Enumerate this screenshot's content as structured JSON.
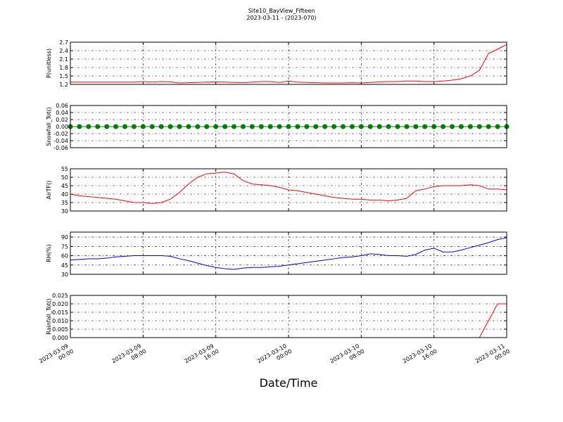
{
  "title": "Site10_BayView_Fifteen",
  "subtitle": "2023-03-11 - (2023-070)",
  "xlabel": "Date/Time",
  "chart_data": [
    {
      "type": "line",
      "ylabel": "P(unitless)",
      "color": "#ff0000",
      "grid": true,
      "xlim": [
        "2023-03-09 00:00",
        "2023-03-11 00:00"
      ],
      "xticks": [
        "2023-03-09 00:00",
        "2023-03-09 08:00",
        "2023-03-09 16:00",
        "2023-03-10 00:00",
        "2023-03-10 08:00",
        "2023-03-10 16:00",
        "2023-03-11 00:00"
      ],
      "ylim": [
        1.2,
        2.7
      ],
      "yticks": [
        1.2,
        1.5,
        1.8,
        2.1,
        2.4,
        2.7
      ],
      "x": [
        "2023-03-09 00:00",
        "2023-03-09 01:00",
        "2023-03-09 02:00",
        "2023-03-09 03:00",
        "2023-03-09 04:00",
        "2023-03-09 05:00",
        "2023-03-09 06:00",
        "2023-03-09 07:00",
        "2023-03-09 08:00",
        "2023-03-09 09:00",
        "2023-03-09 10:00",
        "2023-03-09 11:00",
        "2023-03-09 12:00",
        "2023-03-09 13:00",
        "2023-03-09 14:00",
        "2023-03-09 15:00",
        "2023-03-09 16:00",
        "2023-03-09 17:00",
        "2023-03-09 18:00",
        "2023-03-09 19:00",
        "2023-03-09 20:00",
        "2023-03-09 21:00",
        "2023-03-09 22:00",
        "2023-03-09 23:00",
        "2023-03-10 00:00",
        "2023-03-10 01:00",
        "2023-03-10 02:00",
        "2023-03-10 03:00",
        "2023-03-10 04:00",
        "2023-03-10 05:00",
        "2023-03-10 06:00",
        "2023-03-10 07:00",
        "2023-03-10 08:00",
        "2023-03-10 09:00",
        "2023-03-10 10:00",
        "2023-03-10 11:00",
        "2023-03-10 12:00",
        "2023-03-10 13:00",
        "2023-03-10 14:00",
        "2023-03-10 15:00",
        "2023-03-10 16:00",
        "2023-03-10 17:00",
        "2023-03-10 18:00",
        "2023-03-10 19:00",
        "2023-03-10 20:00",
        "2023-03-10 21:00",
        "2023-03-10 22:00",
        "2023-03-10 23:00",
        "2023-03-11 00:00"
      ],
      "values": [
        1.28,
        1.28,
        1.28,
        1.28,
        1.28,
        1.28,
        1.28,
        1.28,
        1.3,
        1.28,
        1.3,
        1.29,
        1.25,
        1.26,
        1.27,
        1.28,
        1.29,
        1.28,
        1.27,
        1.26,
        1.28,
        1.3,
        1.3,
        1.27,
        1.32,
        1.28,
        1.27,
        1.26,
        1.25,
        1.25,
        1.25,
        1.26,
        1.25,
        1.27,
        1.29,
        1.3,
        1.3,
        1.32,
        1.32,
        1.3,
        1.3,
        1.32,
        1.35,
        1.4,
        1.5,
        1.7,
        2.3,
        2.45,
        2.62
      ]
    },
    {
      "type": "line",
      "ylabel": "Snowfall_Tot()",
      "color": "#008000",
      "marker": true,
      "grid": true,
      "xlim": [
        "2023-03-09 00:00",
        "2023-03-11 00:00"
      ],
      "xticks": [
        "2023-03-09 00:00",
        "2023-03-09 08:00",
        "2023-03-09 16:00",
        "2023-03-10 00:00",
        "2023-03-10 08:00",
        "2023-03-10 16:00",
        "2023-03-11 00:00"
      ],
      "ylim": [
        -0.06,
        0.06
      ],
      "yticks": [
        -0.06,
        -0.04,
        -0.02,
        {
          "value": 0,
          "label": "0.00"
        },
        0.02,
        0.04,
        0.06
      ],
      "x": [
        "2023-03-09 00:00",
        "2023-03-09 01:00",
        "2023-03-09 02:00",
        "2023-03-09 03:00",
        "2023-03-09 04:00",
        "2023-03-09 05:00",
        "2023-03-09 06:00",
        "2023-03-09 07:00",
        "2023-03-09 08:00",
        "2023-03-09 09:00",
        "2023-03-09 10:00",
        "2023-03-09 11:00",
        "2023-03-09 12:00",
        "2023-03-09 13:00",
        "2023-03-09 14:00",
        "2023-03-09 15:00",
        "2023-03-09 16:00",
        "2023-03-09 17:00",
        "2023-03-09 18:00",
        "2023-03-09 19:00",
        "2023-03-09 20:00",
        "2023-03-09 21:00",
        "2023-03-09 22:00",
        "2023-03-09 23:00",
        "2023-03-10 00:00",
        "2023-03-10 01:00",
        "2023-03-10 02:00",
        "2023-03-10 03:00",
        "2023-03-10 04:00",
        "2023-03-10 05:00",
        "2023-03-10 06:00",
        "2023-03-10 07:00",
        "2023-03-10 08:00",
        "2023-03-10 09:00",
        "2023-03-10 10:00",
        "2023-03-10 11:00",
        "2023-03-10 12:00",
        "2023-03-10 13:00",
        "2023-03-10 14:00",
        "2023-03-10 15:00",
        "2023-03-10 16:00",
        "2023-03-10 17:00",
        "2023-03-10 18:00",
        "2023-03-10 19:00",
        "2023-03-10 20:00",
        "2023-03-10 21:00",
        "2023-03-10 22:00",
        "2023-03-10 23:00",
        "2023-03-11 00:00"
      ],
      "values": [
        0,
        0,
        0,
        0,
        0,
        0,
        0,
        0,
        0,
        0,
        0,
        0,
        0,
        0,
        0,
        0,
        0,
        0,
        0,
        0,
        0,
        0,
        0,
        0,
        0,
        0,
        0,
        0,
        0,
        0,
        0,
        0,
        0,
        0,
        0,
        0,
        0,
        0,
        0,
        0,
        0,
        0,
        0,
        0,
        0,
        0,
        0,
        0,
        0
      ]
    },
    {
      "type": "line",
      "ylabel": "AirTF()",
      "color": "#ff0000",
      "grid": true,
      "xlim": [
        "2023-03-09 00:00",
        "2023-03-11 00:00"
      ],
      "xticks": [
        "2023-03-09 00:00",
        "2023-03-09 08:00",
        "2023-03-09 16:00",
        "2023-03-10 00:00",
        "2023-03-10 08:00",
        "2023-03-10 16:00",
        "2023-03-11 00:00"
      ],
      "ylim": [
        30,
        55
      ],
      "yticks": [
        30,
        35,
        40,
        45,
        50,
        55
      ],
      "x": [
        "2023-03-09 00:00",
        "2023-03-09 01:00",
        "2023-03-09 02:00",
        "2023-03-09 03:00",
        "2023-03-09 04:00",
        "2023-03-09 05:00",
        "2023-03-09 06:00",
        "2023-03-09 07:00",
        "2023-03-09 08:00",
        "2023-03-09 09:00",
        "2023-03-09 10:00",
        "2023-03-09 11:00",
        "2023-03-09 12:00",
        "2023-03-09 13:00",
        "2023-03-09 14:00",
        "2023-03-09 15:00",
        "2023-03-09 16:00",
        "2023-03-09 17:00",
        "2023-03-09 18:00",
        "2023-03-09 19:00",
        "2023-03-09 20:00",
        "2023-03-09 21:00",
        "2023-03-09 22:00",
        "2023-03-09 23:00",
        "2023-03-10 00:00",
        "2023-03-10 01:00",
        "2023-03-10 02:00",
        "2023-03-10 03:00",
        "2023-03-10 04:00",
        "2023-03-10 05:00",
        "2023-03-10 06:00",
        "2023-03-10 07:00",
        "2023-03-10 08:00",
        "2023-03-10 09:00",
        "2023-03-10 10:00",
        "2023-03-10 11:00",
        "2023-03-10 12:00",
        "2023-03-10 13:00",
        "2023-03-10 14:00",
        "2023-03-10 15:00",
        "2023-03-10 16:00",
        "2023-03-10 17:00",
        "2023-03-10 18:00",
        "2023-03-10 19:00",
        "2023-03-10 20:00",
        "2023-03-10 21:00",
        "2023-03-10 22:00",
        "2023-03-10 23:00",
        "2023-03-11 00:00"
      ],
      "values": [
        40,
        39,
        38.5,
        38,
        37.5,
        37,
        36,
        35,
        35,
        34.5,
        35,
        37,
        41,
        46,
        50,
        52,
        52.5,
        53,
        52,
        48,
        46,
        45.5,
        45,
        44,
        42.5,
        42,
        41,
        40,
        39,
        38,
        37.5,
        37,
        37,
        36.5,
        36.5,
        36,
        36.5,
        37.5,
        42,
        43,
        44.5,
        45,
        45,
        45,
        45.5,
        45,
        43,
        43,
        42.5
      ]
    },
    {
      "type": "line",
      "ylabel": "RH(%)",
      "color": "#0000ff",
      "grid": true,
      "xlim": [
        "2023-03-09 00:00",
        "2023-03-11 00:00"
      ],
      "xticks": [
        "2023-03-09 00:00",
        "2023-03-09 08:00",
        "2023-03-09 16:00",
        "2023-03-10 00:00",
        "2023-03-10 08:00",
        "2023-03-10 16:00",
        "2023-03-11 00:00"
      ],
      "ylim": [
        30,
        98
      ],
      "yticks": [
        30,
        45,
        60,
        75,
        90
      ],
      "x": [
        "2023-03-09 00:00",
        "2023-03-09 01:00",
        "2023-03-09 02:00",
        "2023-03-09 03:00",
        "2023-03-09 04:00",
        "2023-03-09 05:00",
        "2023-03-09 06:00",
        "2023-03-09 07:00",
        "2023-03-09 08:00",
        "2023-03-09 09:00",
        "2023-03-09 10:00",
        "2023-03-09 11:00",
        "2023-03-09 12:00",
        "2023-03-09 13:00",
        "2023-03-09 14:00",
        "2023-03-09 15:00",
        "2023-03-09 16:00",
        "2023-03-09 17:00",
        "2023-03-09 18:00",
        "2023-03-09 19:00",
        "2023-03-09 20:00",
        "2023-03-09 21:00",
        "2023-03-09 22:00",
        "2023-03-09 23:00",
        "2023-03-10 00:00",
        "2023-03-10 01:00",
        "2023-03-10 02:00",
        "2023-03-10 03:00",
        "2023-03-10 04:00",
        "2023-03-10 05:00",
        "2023-03-10 06:00",
        "2023-03-10 07:00",
        "2023-03-10 08:00",
        "2023-03-10 09:00",
        "2023-03-10 10:00",
        "2023-03-10 11:00",
        "2023-03-10 12:00",
        "2023-03-10 13:00",
        "2023-03-10 14:00",
        "2023-03-10 15:00",
        "2023-03-10 16:00",
        "2023-03-10 17:00",
        "2023-03-10 18:00",
        "2023-03-10 19:00",
        "2023-03-10 20:00",
        "2023-03-10 21:00",
        "2023-03-10 22:00",
        "2023-03-10 23:00",
        "2023-03-11 00:00"
      ],
      "values": [
        53,
        54,
        55,
        55,
        56,
        58,
        59,
        60,
        60,
        60,
        60,
        59,
        55,
        52,
        48,
        44,
        41,
        39,
        38,
        40,
        41,
        41,
        42,
        43,
        45,
        47,
        49,
        51,
        53,
        55,
        57,
        58,
        60,
        63,
        62,
        60,
        60,
        59,
        62,
        69,
        72,
        66,
        66,
        69,
        73,
        77,
        81,
        86,
        89
      ]
    },
    {
      "type": "line",
      "ylabel": "Rainfall_Tot()",
      "color": "#ff0000",
      "grid": true,
      "xlim": [
        "2023-03-09 00:00",
        "2023-03-11 00:00"
      ],
      "xticks": [
        "2023-03-09 00:00",
        "2023-03-09 08:00",
        "2023-03-09 16:00",
        "2023-03-10 00:00",
        "2023-03-10 08:00",
        "2023-03-10 16:00",
        "2023-03-11 00:00"
      ],
      "ylim": [
        0,
        0.025
      ],
      "yticks": [
        {
          "value": 0,
          "label": "0.000"
        },
        0.005,
        {
          "value": 0.01,
          "label": "0.010"
        },
        0.015,
        {
          "value": 0.02,
          "label": "0.020"
        },
        0.025
      ],
      "x": [
        "2023-03-09 00:00",
        "2023-03-09 01:00",
        "2023-03-09 02:00",
        "2023-03-09 03:00",
        "2023-03-09 04:00",
        "2023-03-09 05:00",
        "2023-03-09 06:00",
        "2023-03-09 07:00",
        "2023-03-09 08:00",
        "2023-03-09 09:00",
        "2023-03-09 10:00",
        "2023-03-09 11:00",
        "2023-03-09 12:00",
        "2023-03-09 13:00",
        "2023-03-09 14:00",
        "2023-03-09 15:00",
        "2023-03-09 16:00",
        "2023-03-09 17:00",
        "2023-03-09 18:00",
        "2023-03-09 19:00",
        "2023-03-09 20:00",
        "2023-03-09 21:00",
        "2023-03-09 22:00",
        "2023-03-09 23:00",
        "2023-03-10 00:00",
        "2023-03-10 01:00",
        "2023-03-10 02:00",
        "2023-03-10 03:00",
        "2023-03-10 04:00",
        "2023-03-10 05:00",
        "2023-03-10 06:00",
        "2023-03-10 07:00",
        "2023-03-10 08:00",
        "2023-03-10 09:00",
        "2023-03-10 10:00",
        "2023-03-10 11:00",
        "2023-03-10 12:00",
        "2023-03-10 13:00",
        "2023-03-10 14:00",
        "2023-03-10 15:00",
        "2023-03-10 16:00",
        "2023-03-10 17:00",
        "2023-03-10 18:00",
        "2023-03-10 19:00",
        "2023-03-10 20:00",
        "2023-03-10 21:00",
        "2023-03-10 22:00",
        "2023-03-10 23:00",
        "2023-03-11 00:00"
      ],
      "values": [
        0,
        0,
        0,
        0,
        0,
        0,
        0,
        0,
        0,
        0,
        0,
        0,
        0,
        0,
        0,
        0,
        0,
        0,
        0,
        0,
        0,
        0,
        0,
        0,
        0,
        0,
        0,
        0,
        0,
        0,
        0,
        0,
        0,
        0,
        0,
        0,
        0,
        0,
        0,
        0,
        0,
        0,
        0,
        0,
        0,
        0,
        0.01,
        0.02,
        0.02
      ],
      "show_xtick_labels": true
    }
  ]
}
